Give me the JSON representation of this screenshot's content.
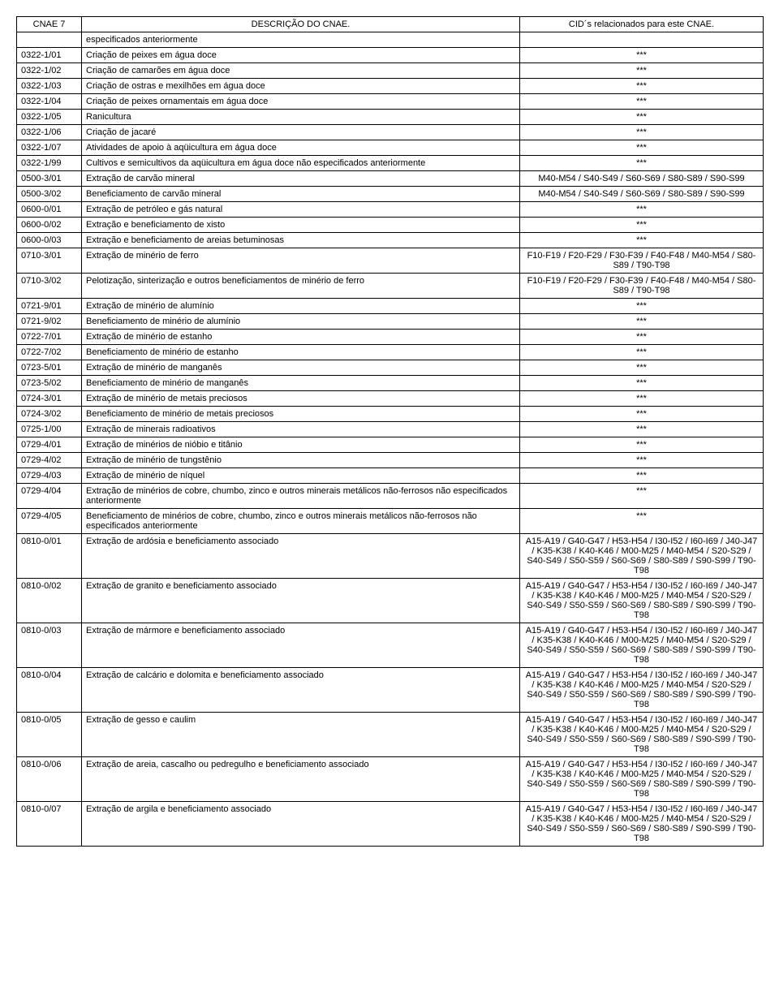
{
  "headers": {
    "col1": "CNAE 7",
    "col2": "DESCRIÇÃO DO CNAE.",
    "col3": "CID´s relacionados para este CNAE."
  },
  "rows": [
    {
      "code": "",
      "desc": "especificados anteriormente",
      "cid": ""
    },
    {
      "code": "0322-1/01",
      "desc": "Criação de peixes em água doce",
      "cid": "***"
    },
    {
      "code": "0322-1/02",
      "desc": "Criação de camarões em água doce",
      "cid": "***"
    },
    {
      "code": "0322-1/03",
      "desc": "Criação de ostras e mexilhões em água doce",
      "cid": "***"
    },
    {
      "code": "0322-1/04",
      "desc": "Criação de peixes ornamentais em água doce",
      "cid": "***"
    },
    {
      "code": "0322-1/05",
      "desc": "Ranicultura",
      "cid": "***"
    },
    {
      "code": "0322-1/06",
      "desc": "Criação de jacaré",
      "cid": "***"
    },
    {
      "code": "0322-1/07",
      "desc": "Atividades de apoio à aqüicultura em água doce",
      "cid": "***"
    },
    {
      "code": "0322-1/99",
      "desc": "Cultivos e semicultivos da aqüicultura em água doce não especificados anteriormente",
      "cid": "***",
      "justify": true
    },
    {
      "code": "0500-3/01",
      "desc": "Extração de carvão mineral",
      "cid": "M40-M54 / S40-S49 / S60-S69 / S80-S89 / S90-S99"
    },
    {
      "code": "0500-3/02",
      "desc": "Beneficiamento de carvão mineral",
      "cid": "M40-M54 / S40-S49 / S60-S69 / S80-S89 / S90-S99"
    },
    {
      "code": "0600-0/01",
      "desc": "Extração de petróleo e gás natural",
      "cid": "***"
    },
    {
      "code": "0600-0/02",
      "desc": "Extração e beneficiamento de xisto",
      "cid": "***"
    },
    {
      "code": "0600-0/03",
      "desc": "Extração e beneficiamento de areias betuminosas",
      "cid": "***"
    },
    {
      "code": "0710-3/01",
      "desc": "Extração de minério de ferro",
      "cid": "F10-F19 / F20-F29 / F30-F39 / F40-F48 / M40-M54 / S80-S89 / T90-T98"
    },
    {
      "code": "0710-3/02",
      "desc": "Pelotização, sinterização e outros beneficiamentos de minério de ferro",
      "cid": "F10-F19 / F20-F29 / F30-F39 / F40-F48 / M40-M54 / S80-S89 / T90-T98"
    },
    {
      "code": "0721-9/01",
      "desc": "Extração de minério de alumínio",
      "cid": "***"
    },
    {
      "code": "0721-9/02",
      "desc": "Beneficiamento de minério de alumínio",
      "cid": "***"
    },
    {
      "code": "0722-7/01",
      "desc": "Extração de minério de estanho",
      "cid": "***"
    },
    {
      "code": "0722-7/02",
      "desc": "Beneficiamento de minério de estanho",
      "cid": "***"
    },
    {
      "code": "0723-5/01",
      "desc": "Extração de minério de manganês",
      "cid": "***"
    },
    {
      "code": "0723-5/02",
      "desc": "Beneficiamento de minério de manganês",
      "cid": "***"
    },
    {
      "code": "0724-3/01",
      "desc": "Extração de minério de metais preciosos",
      "cid": "***"
    },
    {
      "code": "0724-3/02",
      "desc": "Beneficiamento de minério de metais preciosos",
      "cid": "***"
    },
    {
      "code": "0725-1/00",
      "desc": "Extração de minerais radioativos",
      "cid": "***"
    },
    {
      "code": "0729-4/01",
      "desc": "Extração de minérios de nióbio e titânio",
      "cid": "***"
    },
    {
      "code": "0729-4/02",
      "desc": "Extração de minério de tungstênio",
      "cid": "***"
    },
    {
      "code": "0729-4/03",
      "desc": "Extração de minério de níquel",
      "cid": "***"
    },
    {
      "code": "0729-4/04",
      "desc": "Extração de minérios de cobre, chumbo, zinco e outros minerais metálicos não-ferrosos não especificados anteriormente",
      "cid": "***"
    },
    {
      "code": "0729-4/05",
      "desc": "Beneficiamento de minérios de cobre, chumbo, zinco e outros minerais metálicos não-ferrosos não especificados anteriormente",
      "cid": "***"
    },
    {
      "code": "0810-0/01",
      "desc": "Extração de ardósia e beneficiamento associado",
      "cid": "A15-A19 / G40-G47 / H53-H54 / I30-I52 / I60-I69 / J40-J47 / K35-K38 / K40-K46 / M00-M25 / M40-M54 / S20-S29 / S40-S49 / S50-S59 / S60-S69 / S80-S89 / S90-S99 / T90-T98"
    },
    {
      "code": "0810-0/02",
      "desc": "Extração de granito e beneficiamento associado",
      "cid": "A15-A19 / G40-G47 / H53-H54 / I30-I52 / I60-I69 / J40-J47 / K35-K38 / K40-K46 / M00-M25 / M40-M54 / S20-S29 / S40-S49 / S50-S59 / S60-S69 / S80-S89 / S90-S99 / T90-T98"
    },
    {
      "code": "0810-0/03",
      "desc": "Extração de mármore e beneficiamento associado",
      "cid": "A15-A19 / G40-G47 / H53-H54 / I30-I52 / I60-I69 / J40-J47 / K35-K38 / K40-K46 / M00-M25 / M40-M54 / S20-S29 / S40-S49 / S50-S59 / S60-S69 / S80-S89 / S90-S99 / T90-T98"
    },
    {
      "code": "0810-0/04",
      "desc": "Extração de calcário e dolomita e beneficiamento associado",
      "cid": "A15-A19 / G40-G47 / H53-H54 / I30-I52 / I60-I69 / J40-J47 / K35-K38 / K40-K46 / M00-M25 / M40-M54 / S20-S29 / S40-S49 / S50-S59 / S60-S69 / S80-S89 / S90-S99 / T90-T98"
    },
    {
      "code": "0810-0/05",
      "desc": "Extração de gesso e caulim",
      "cid": "A15-A19 / G40-G47 / H53-H54 / I30-I52 / I60-I69 / J40-J47 / K35-K38 / K40-K46 / M00-M25 / M40-M54 / S20-S29 / S40-S49 / S50-S59 / S60-S69 / S80-S89 / S90-S99 / T90-T98"
    },
    {
      "code": "0810-0/06",
      "desc": "Extração de areia, cascalho ou pedregulho e beneficiamento associado",
      "cid": "A15-A19 / G40-G47 / H53-H54 / I30-I52 / I60-I69 / J40-J47 / K35-K38 / K40-K46 / M00-M25 / M40-M54 / S20-S29 / S40-S49 / S50-S59 / S60-S69 / S80-S89 / S90-S99 / T90-T98"
    },
    {
      "code": "0810-0/07",
      "desc": "Extração de argila e beneficiamento associado",
      "cid": "A15-A19 / G40-G47 / H53-H54 / I30-I52 / I60-I69 / J40-J47 / K35-K38 / K40-K46 / M00-M25 / M40-M54 / S20-S29 / S40-S49 / S50-S59 / S60-S69 / S80-S89 / S90-S99 / T90-T98"
    }
  ]
}
